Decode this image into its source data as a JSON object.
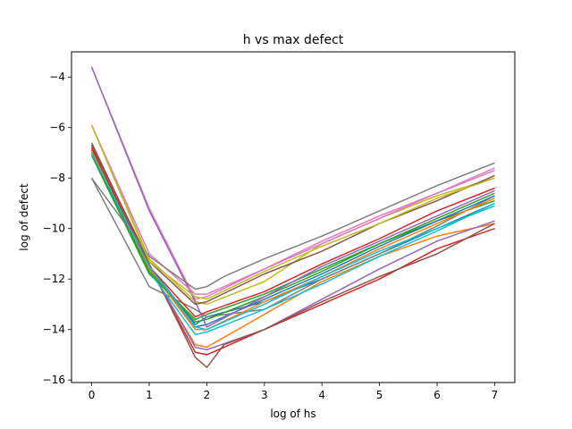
{
  "chart_data": {
    "type": "line",
    "title": "h vs max defect",
    "xlabel": "log of hs",
    "ylabel": "log of defect",
    "xlim": [
      -0.35,
      7.35
    ],
    "ylim": [
      -16.1,
      -3.0
    ],
    "xticks": [
      0,
      1,
      2,
      3,
      4,
      5,
      6,
      7
    ],
    "yticks": [
      -16,
      -14,
      -12,
      -10,
      -8,
      -6,
      -4
    ],
    "grid": false,
    "legend": "none",
    "series": [
      {
        "color": "#1f77b4",
        "points": [
          [
            0,
            -7.0
          ],
          [
            1,
            -11.5
          ],
          [
            1.8,
            -13.8
          ],
          [
            2,
            -13.5
          ],
          [
            3,
            -12.9
          ],
          [
            4,
            -12.0
          ],
          [
            5,
            -11.0
          ],
          [
            6,
            -10.0
          ],
          [
            7,
            -9.0
          ]
        ]
      },
      {
        "color": "#ff7f0e",
        "points": [
          [
            0,
            -6.9
          ],
          [
            1,
            -11.6
          ],
          [
            1.8,
            -14.6
          ],
          [
            2,
            -14.7
          ],
          [
            3,
            -13.4
          ],
          [
            4,
            -12.1
          ],
          [
            5,
            -11.1
          ],
          [
            6,
            -10.3
          ],
          [
            7,
            -9.8
          ]
        ]
      },
      {
        "color": "#2ca02c",
        "points": [
          [
            0,
            -7.1
          ],
          [
            1,
            -11.8
          ],
          [
            1.8,
            -13.6
          ],
          [
            2,
            -13.4
          ],
          [
            3,
            -12.6
          ],
          [
            4,
            -11.6
          ],
          [
            5,
            -10.6
          ],
          [
            6,
            -9.7
          ],
          [
            7,
            -8.9
          ]
        ]
      },
      {
        "color": "#d62728",
        "points": [
          [
            0,
            -6.8
          ],
          [
            1,
            -11.5
          ],
          [
            1.8,
            -14.9
          ],
          [
            2,
            -15.0
          ],
          [
            2.3,
            -14.7
          ],
          [
            3,
            -14.0
          ],
          [
            4,
            -13.0
          ],
          [
            5,
            -12.0
          ],
          [
            6,
            -10.8
          ],
          [
            7,
            -10.0
          ]
        ]
      },
      {
        "color": "#9467bd",
        "points": [
          [
            0,
            -6.7
          ],
          [
            1,
            -11.5
          ],
          [
            1.8,
            -14.7
          ],
          [
            2,
            -14.8
          ],
          [
            3,
            -14.0
          ],
          [
            4,
            -12.8
          ],
          [
            5,
            -11.6
          ],
          [
            6,
            -10.5
          ],
          [
            7,
            -9.7
          ]
        ]
      },
      {
        "color": "#8c564b",
        "points": [
          [
            0,
            -6.6
          ],
          [
            1,
            -11.4
          ],
          [
            1.8,
            -15.1
          ],
          [
            2,
            -15.5
          ],
          [
            2.3,
            -14.6
          ],
          [
            3,
            -14.0
          ],
          [
            4,
            -12.9
          ],
          [
            5,
            -11.9
          ],
          [
            6,
            -11.0
          ],
          [
            7,
            -9.8
          ]
        ]
      },
      {
        "color": "#e377c2",
        "points": [
          [
            0,
            -3.6
          ],
          [
            1,
            -9.2
          ],
          [
            1.8,
            -12.8
          ],
          [
            2,
            -12.7
          ],
          [
            3,
            -11.6
          ],
          [
            4,
            -10.5
          ],
          [
            5,
            -9.5
          ],
          [
            6,
            -8.6
          ],
          [
            7,
            -7.7
          ]
        ]
      },
      {
        "color": "#7f7f7f",
        "points": [
          [
            0,
            -8.0
          ],
          [
            1,
            -12.3
          ],
          [
            1.8,
            -13.2
          ],
          [
            2,
            -13.5
          ],
          [
            3,
            -13.2
          ],
          [
            4,
            -12.0
          ],
          [
            5,
            -11.0
          ],
          [
            6,
            -9.9
          ],
          [
            7,
            -8.7
          ]
        ]
      },
      {
        "color": "#bcbd22",
        "points": [
          [
            0,
            -5.9
          ],
          [
            1,
            -11.2
          ],
          [
            1.8,
            -12.9
          ],
          [
            2,
            -13.0
          ],
          [
            3,
            -12.1
          ],
          [
            4,
            -10.6
          ],
          [
            5,
            -9.6
          ],
          [
            6,
            -8.7
          ],
          [
            7,
            -8.0
          ]
        ]
      },
      {
        "color": "#17becf",
        "points": [
          [
            0,
            -7.0
          ],
          [
            1,
            -11.7
          ],
          [
            1.8,
            -14.2
          ],
          [
            2,
            -14.1
          ],
          [
            3,
            -13.2
          ],
          [
            4,
            -12.2
          ],
          [
            5,
            -11.1
          ],
          [
            6,
            -10.1
          ],
          [
            7,
            -9.0
          ]
        ]
      },
      {
        "color": "#1f77b4",
        "points": [
          [
            0,
            -7.0
          ],
          [
            1,
            -11.6
          ],
          [
            1.8,
            -13.9
          ],
          [
            2,
            -13.8
          ],
          [
            3,
            -12.8
          ],
          [
            4,
            -11.8
          ],
          [
            5,
            -10.7
          ],
          [
            6,
            -9.7
          ],
          [
            7,
            -8.7
          ]
        ]
      },
      {
        "color": "#ff7f0e",
        "points": [
          [
            0,
            -6.9
          ],
          [
            1,
            -11.6
          ],
          [
            1.8,
            -14.0
          ],
          [
            2,
            -14.0
          ],
          [
            3,
            -12.9
          ],
          [
            4,
            -11.9
          ],
          [
            5,
            -10.8
          ],
          [
            6,
            -9.8
          ],
          [
            7,
            -8.8
          ]
        ]
      },
      {
        "color": "#2ca02c",
        "points": [
          [
            0,
            -7.0
          ],
          [
            1,
            -11.7
          ],
          [
            1.8,
            -13.7
          ],
          [
            2,
            -13.6
          ],
          [
            3,
            -12.7
          ],
          [
            4,
            -11.7
          ],
          [
            5,
            -10.6
          ],
          [
            6,
            -9.6
          ],
          [
            7,
            -8.6
          ]
        ]
      },
      {
        "color": "#d62728",
        "points": [
          [
            0,
            -6.8
          ],
          [
            1,
            -11.5
          ],
          [
            1.8,
            -13.5
          ],
          [
            2,
            -13.3
          ],
          [
            3,
            -12.5
          ],
          [
            4,
            -11.4
          ],
          [
            5,
            -10.4
          ],
          [
            6,
            -9.3
          ],
          [
            7,
            -8.4
          ]
        ]
      },
      {
        "color": "#9467bd",
        "points": [
          [
            0,
            -3.6
          ],
          [
            1,
            -9.3
          ],
          [
            1.8,
            -12.9
          ],
          [
            2,
            -13.9
          ],
          [
            3,
            -12.7
          ],
          [
            4,
            -11.5
          ],
          [
            5,
            -10.5
          ],
          [
            6,
            -9.5
          ],
          [
            7,
            -8.5
          ]
        ]
      },
      {
        "color": "#8c564b",
        "points": [
          [
            0,
            -6.7
          ],
          [
            1,
            -11.3
          ],
          [
            1.8,
            -13.0
          ],
          [
            2,
            -12.9
          ],
          [
            3,
            -11.8
          ],
          [
            4,
            -10.9
          ],
          [
            5,
            -9.8
          ],
          [
            6,
            -8.9
          ],
          [
            7,
            -7.9
          ]
        ]
      },
      {
        "color": "#e377c2",
        "points": [
          [
            0,
            -5.9
          ],
          [
            1,
            -11.0
          ],
          [
            1.8,
            -12.6
          ],
          [
            2,
            -12.6
          ],
          [
            3,
            -11.6
          ],
          [
            4,
            -10.6
          ],
          [
            5,
            -9.6
          ],
          [
            6,
            -8.6
          ],
          [
            7,
            -7.6
          ]
        ]
      },
      {
        "color": "#7f7f7f",
        "points": [
          [
            0,
            -8.0
          ],
          [
            1,
            -11.1
          ],
          [
            1.8,
            -12.4
          ],
          [
            2,
            -12.3
          ],
          [
            2.3,
            -11.9
          ],
          [
            3,
            -11.2
          ],
          [
            4,
            -10.3
          ],
          [
            5,
            -9.3
          ],
          [
            6,
            -8.3
          ],
          [
            7,
            -7.4
          ]
        ]
      },
      {
        "color": "#bcbd22",
        "points": [
          [
            0,
            -5.9
          ],
          [
            1,
            -11.3
          ],
          [
            1.8,
            -12.7
          ],
          [
            2,
            -12.8
          ],
          [
            3,
            -11.7
          ],
          [
            4,
            -10.7
          ],
          [
            5,
            -9.8
          ],
          [
            6,
            -8.8
          ],
          [
            7,
            -8.0
          ]
        ]
      },
      {
        "color": "#17becf",
        "points": [
          [
            0,
            -7.0
          ],
          [
            1,
            -11.5
          ],
          [
            1.8,
            -13.9
          ],
          [
            2,
            -14.0
          ],
          [
            3,
            -13.0
          ],
          [
            4,
            -11.9
          ],
          [
            5,
            -10.9
          ],
          [
            6,
            -10.0
          ],
          [
            7,
            -9.1
          ]
        ]
      }
    ]
  }
}
